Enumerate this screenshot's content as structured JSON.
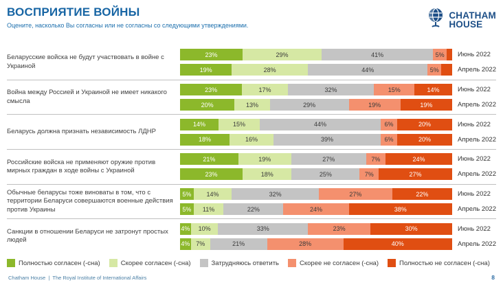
{
  "header": {
    "title": "ВОСПРИЯТИЕ ВОЙНЫ",
    "subtitle": "Оцените, насколько Вы согласны или не согласны со следующими утверждениями.",
    "logo_line1": "CHATHAM",
    "logo_line2": "HOUSE",
    "logo_color": "#1D4F87"
  },
  "footer": {
    "org": "Chatham House",
    "separator": "|",
    "org_full": "The Royal Institute of International Affairs",
    "page_number": "8"
  },
  "chart_data": {
    "type": "bar",
    "variant": "horizontal-stacked",
    "colors": [
      "#8CB82B",
      "#D6E8A4",
      "#C4C4C4",
      "#F4906E",
      "#E04E12"
    ],
    "label_colors": [
      "#ffffff",
      "#3a3a3a",
      "#3a3a3a",
      "#3a3a3a",
      "#ffffff"
    ],
    "legend": [
      {
        "label": "Полностью согласен (-сна)",
        "color": "#8CB82B"
      },
      {
        "label": "Скорее согласен (-сна)",
        "color": "#D6E8A4"
      },
      {
        "label": "Затрудняюсь ответить",
        "color": "#C4C4C4"
      },
      {
        "label": "Скорее не согласен (-сна)",
        "color": "#F4906E"
      },
      {
        "label": "Полностью не согласен (-сна)",
        "color": "#E04E12"
      }
    ],
    "legend_position": "bottom",
    "xlim": [
      0,
      100
    ],
    "groups": [
      {
        "statement": "Беларусские войска не будут участвовать в войне с Украиной",
        "bars": [
          {
            "period": "Июнь 2022",
            "values": [
              23,
              29,
              41,
              5,
              2
            ],
            "labels": [
              "23%",
              "29%",
              "41%",
              "5%",
              ""
            ]
          },
          {
            "period": "Апрель 2022",
            "values": [
              19,
              28,
              44,
              5,
              4
            ],
            "labels": [
              "19%",
              "28%",
              "44%",
              "5%",
              ""
            ]
          }
        ]
      },
      {
        "statement": "Война между Россией и Украиной не имеет никакого смысла",
        "bars": [
          {
            "period": "Июнь 2022",
            "values": [
              23,
              17,
              32,
              15,
              14
            ],
            "labels": [
              "23%",
              "17%",
              "32%",
              "15%",
              "14%"
            ]
          },
          {
            "period": "Апрель 2022",
            "values": [
              20,
              13,
              29,
              19,
              19
            ],
            "labels": [
              "20%",
              "13%",
              "29%",
              "19%",
              "19%"
            ]
          }
        ]
      },
      {
        "statement": "Беларусь должна признать независимость ЛДНР",
        "bars": [
          {
            "period": "Июнь 2022",
            "values": [
              14,
              15,
              44,
              6,
              20
            ],
            "labels": [
              "14%",
              "15%",
              "44%",
              "6%",
              "20%"
            ]
          },
          {
            "period": "Апрель 2022",
            "values": [
              18,
              16,
              39,
              6,
              20
            ],
            "labels": [
              "18%",
              "16%",
              "39%",
              "6%",
              "20%"
            ]
          }
        ]
      },
      {
        "statement": "Российские войска не применяют оружие против мирных граждан в ходе войны с Украиной",
        "bars": [
          {
            "period": "Июнь 2022",
            "values": [
              21,
              19,
              27,
              7,
              24
            ],
            "labels": [
              "21%",
              "19%",
              "27%",
              "7%",
              "24%"
            ]
          },
          {
            "period": "Апрель 2022",
            "values": [
              23,
              18,
              25,
              7,
              27
            ],
            "labels": [
              "23%",
              "18%",
              "25%",
              "7%",
              "27%"
            ]
          }
        ]
      },
      {
        "statement": "Обычные беларусы тоже виноваты в том, что с территории Беларуси совершаются военные действия против Украины",
        "bars": [
          {
            "period": "Июнь 2022",
            "values": [
              5,
              14,
              32,
              27,
              22
            ],
            "labels": [
              "5%",
              "14%",
              "32%",
              "27%",
              "22%"
            ]
          },
          {
            "period": "Апрель 2022",
            "values": [
              5,
              11,
              22,
              24,
              38
            ],
            "labels": [
              "5%",
              "11%",
              "22%",
              "24%",
              "38%"
            ]
          }
        ]
      },
      {
        "statement": "Санкции в отношении Беларуси не затронут простых людей",
        "bars": [
          {
            "period": "Июнь 2022",
            "values": [
              4,
              10,
              33,
              23,
              30
            ],
            "labels": [
              "4%",
              "10%",
              "33%",
              "23%",
              "30%"
            ]
          },
          {
            "period": "Апрель 2022",
            "values": [
              4,
              7,
              21,
              28,
              40
            ],
            "labels": [
              "4%",
              "7%",
              "21%",
              "28%",
              "40%"
            ]
          }
        ]
      }
    ]
  }
}
